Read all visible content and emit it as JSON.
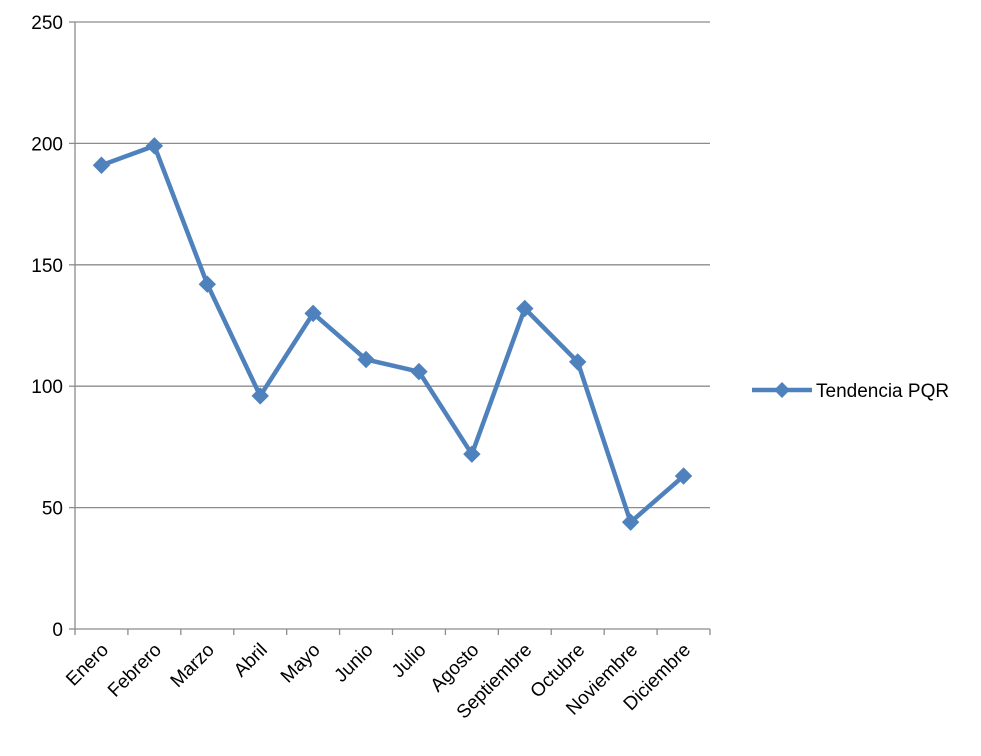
{
  "chart_data": {
    "type": "line",
    "title": "",
    "xlabel": "",
    "ylabel": "",
    "categories": [
      "Enero",
      "Febrero",
      "Marzo",
      "Abril",
      "Mayo",
      "Junio",
      "Julio",
      "Agosto",
      "Septiembre",
      "Octubre",
      "Noviembre",
      "Diciembre"
    ],
    "series": [
      {
        "name": "Tendencia PQR",
        "values": [
          191,
          199,
          142,
          96,
          130,
          111,
          106,
          72,
          132,
          110,
          44,
          63
        ],
        "color": "#4f81bd",
        "marker": "diamond"
      }
    ],
    "ylim": [
      0,
      250
    ],
    "yticks": [
      0,
      50,
      100,
      150,
      200,
      250
    ],
    "grid": true,
    "legend_position": "right"
  }
}
